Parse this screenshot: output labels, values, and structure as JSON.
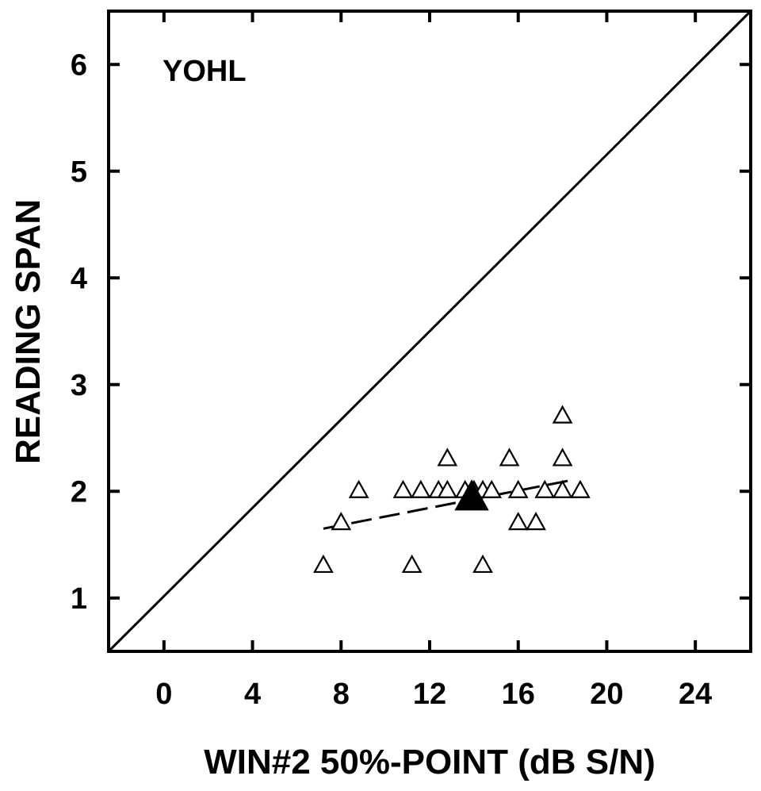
{
  "chart_data": {
    "type": "scatter",
    "title": "",
    "annotation": "YOHL",
    "xlabel": "WIN#2 50%-POINT (dB S/N)",
    "ylabel": "READING SPAN",
    "xlim": [
      -2.5,
      26.5
    ],
    "ylim": [
      0.5,
      6.5
    ],
    "xticks": [
      0,
      4,
      8,
      12,
      16,
      20,
      24
    ],
    "yticks": [
      1,
      2,
      3,
      4,
      5,
      6
    ],
    "grid": false,
    "series": [
      {
        "marker": "open-triangle",
        "color": "#000000",
        "points": [
          {
            "x": 7.2,
            "y": 1.3
          },
          {
            "x": 8.0,
            "y": 1.7
          },
          {
            "x": 8.8,
            "y": 2.0
          },
          {
            "x": 10.8,
            "y": 2.0
          },
          {
            "x": 11.2,
            "y": 1.3
          },
          {
            "x": 11.6,
            "y": 2.0
          },
          {
            "x": 12.4,
            "y": 2.0
          },
          {
            "x": 12.8,
            "y": 2.3
          },
          {
            "x": 12.8,
            "y": 2.0
          },
          {
            "x": 13.6,
            "y": 2.0
          },
          {
            "x": 14.0,
            "y": 2.0
          },
          {
            "x": 14.4,
            "y": 2.0
          },
          {
            "x": 14.4,
            "y": 1.3
          },
          {
            "x": 14.8,
            "y": 2.0
          },
          {
            "x": 15.6,
            "y": 2.3
          },
          {
            "x": 16.0,
            "y": 2.0
          },
          {
            "x": 16.0,
            "y": 1.7
          },
          {
            "x": 16.8,
            "y": 1.7
          },
          {
            "x": 17.2,
            "y": 2.0
          },
          {
            "x": 18.0,
            "y": 2.7
          },
          {
            "x": 18.0,
            "y": 2.3
          },
          {
            "x": 18.0,
            "y": 2.0
          },
          {
            "x": 18.8,
            "y": 2.0
          }
        ]
      },
      {
        "marker": "filled-triangle",
        "color": "#000000",
        "points": [
          {
            "x": 13.9,
            "y": 1.93
          }
        ]
      }
    ],
    "reference_line": {
      "style": "solid",
      "from": {
        "x": -2.5,
        "y": 0.5
      },
      "to": {
        "x": 26.5,
        "y": 6.5
      }
    },
    "regression_line": {
      "style": "dashed",
      "from": {
        "x": 7.2,
        "y": 1.65
      },
      "to": {
        "x": 18.3,
        "y": 2.1
      }
    }
  }
}
